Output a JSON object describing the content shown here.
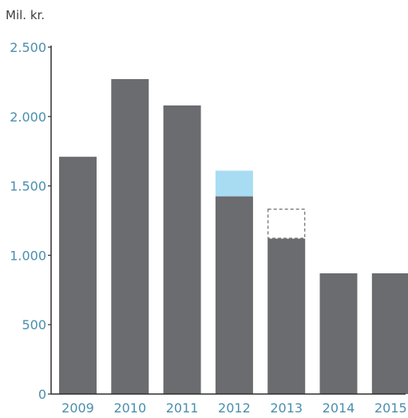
{
  "colors": {
    "bar": "#6b6c6f",
    "highlight_fill": "#a8dcf3",
    "axis": "#2f2f2f",
    "tick_label": "#4a8fad",
    "dashed_outline": "#6b6c6f"
  },
  "chart_data": {
    "type": "bar",
    "title": "",
    "xlabel": "",
    "ylabel": "Mil. kr.",
    "ylim": [
      0,
      2500
    ],
    "y_ticks": [
      0,
      500,
      1000,
      1500,
      2000,
      2500
    ],
    "y_tick_labels": [
      "0",
      "500",
      "1.000",
      "1.500",
      "2.000",
      "2.500"
    ],
    "categories": [
      "2009",
      "2010",
      "2011",
      "2012",
      "2013",
      "2014",
      "2015"
    ],
    "values": [
      1710,
      2270,
      2080,
      1425,
      1120,
      870,
      870
    ],
    "extra_segments": [
      {
        "category": "2012",
        "from": 1425,
        "to": 1610,
        "style": "light-blue-fill"
      },
      {
        "category": "2013",
        "from": 1120,
        "to": 1335,
        "style": "dashed-outline"
      }
    ],
    "grid": false,
    "legend": "none"
  }
}
